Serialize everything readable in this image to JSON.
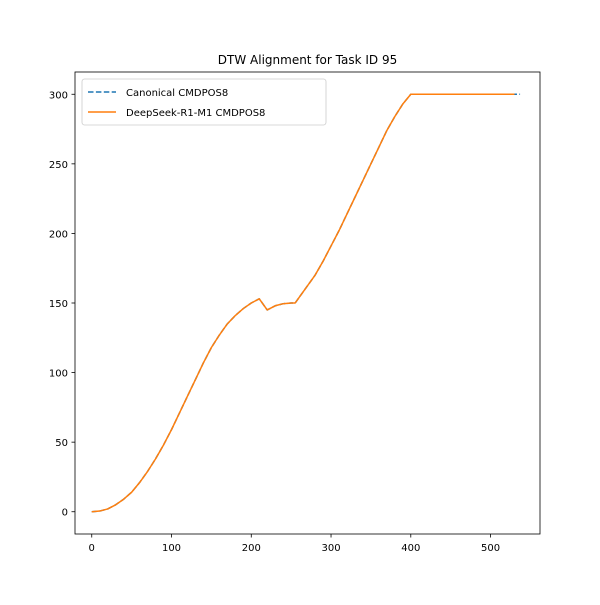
{
  "chart_data": {
    "type": "line",
    "title": "DTW Alignment for Task ID 95",
    "xlabel": "",
    "ylabel": "",
    "xlim": [
      -21,
      562
    ],
    "ylim": [
      -16,
      316
    ],
    "xticks": [
      0,
      100,
      200,
      300,
      400,
      500
    ],
    "yticks": [
      0,
      50,
      100,
      150,
      200,
      250,
      300
    ],
    "grid": false,
    "legend_position": "top-left",
    "series": [
      {
        "name": "Canonical CMDPOS8",
        "color": "#1f77b4",
        "style": "dashed",
        "x": [
          0,
          10,
          20,
          30,
          40,
          50,
          60,
          70,
          80,
          90,
          100,
          110,
          120,
          130,
          140,
          150,
          160,
          170,
          180,
          190,
          200,
          210,
          220,
          230,
          240,
          250,
          255,
          260,
          270,
          280,
          290,
          300,
          310,
          320,
          330,
          340,
          350,
          360,
          370,
          380,
          390,
          400,
          410,
          420,
          430,
          440,
          450,
          460,
          470,
          480,
          490,
          500,
          510,
          520,
          530,
          537
        ],
        "y": [
          0,
          0.5,
          2,
          5,
          9,
          14,
          21,
          29,
          38,
          48,
          59,
          71,
          83,
          95,
          107,
          118,
          127,
          135,
          141,
          146,
          150,
          153,
          145,
          148,
          149.5,
          150,
          150,
          154,
          162,
          170,
          180,
          191,
          202,
          214,
          226,
          238,
          250,
          262,
          274,
          284,
          293,
          300,
          300,
          300,
          300,
          300,
          300,
          300,
          300,
          300,
          300,
          300,
          300,
          300,
          300,
          300
        ]
      },
      {
        "name": "DeepSeek-R1-M1 CMDPOS8",
        "color": "#ff7f0e",
        "style": "solid",
        "x": [
          0,
          10,
          20,
          30,
          40,
          50,
          60,
          70,
          80,
          90,
          100,
          110,
          120,
          130,
          140,
          150,
          160,
          170,
          180,
          190,
          200,
          210,
          220,
          230,
          240,
          250,
          255,
          260,
          270,
          280,
          290,
          300,
          310,
          320,
          330,
          340,
          350,
          360,
          370,
          380,
          390,
          400,
          410,
          420,
          430,
          440,
          450,
          460,
          470,
          480,
          490,
          500,
          510,
          520,
          530
        ],
        "y": [
          0,
          0.5,
          2,
          5,
          9,
          14,
          21,
          29,
          38,
          48,
          59,
          71,
          83,
          95,
          107,
          118,
          127,
          135,
          141,
          146,
          150,
          153,
          145,
          148,
          149.5,
          150,
          150,
          154,
          162,
          170,
          180,
          191,
          202,
          214,
          226,
          238,
          250,
          262,
          274,
          284,
          293,
          300,
          300,
          300,
          300,
          300,
          300,
          300,
          300,
          300,
          300,
          300,
          300,
          300,
          300
        ]
      }
    ]
  }
}
